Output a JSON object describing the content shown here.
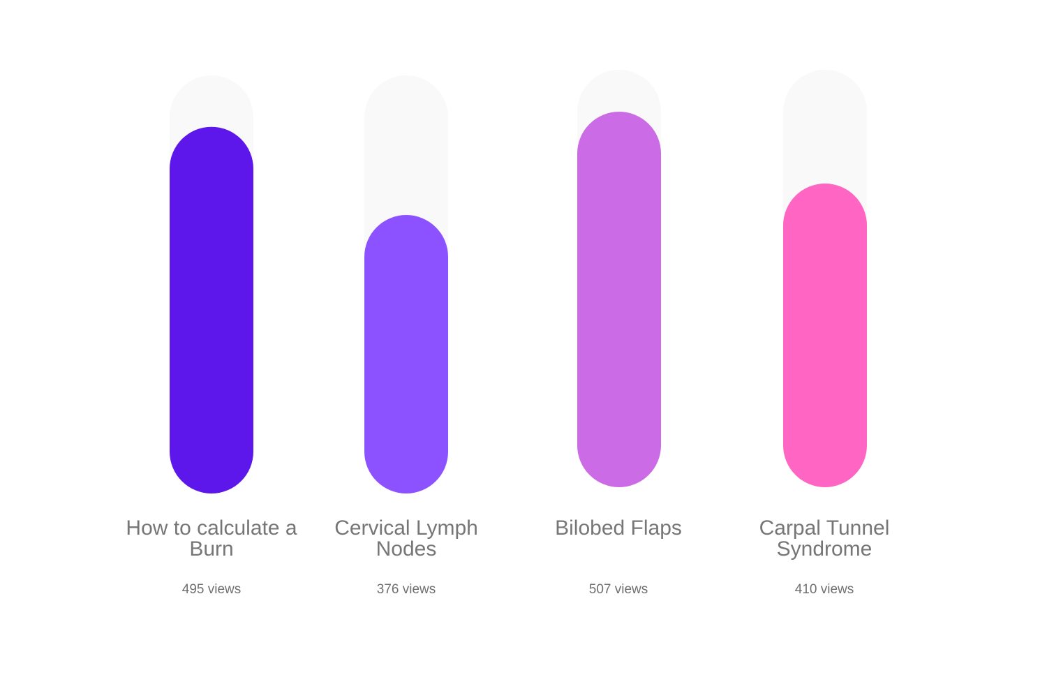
{
  "chart_data": {
    "type": "bar",
    "categories": [
      "How to calculate a Burn",
      "Cervical Lymph Nodes",
      "Bilobed Flaps",
      "Carpal Tunnel Syndrome"
    ],
    "values": [
      495,
      376,
      507,
      410
    ],
    "value_labels": [
      "495 views",
      "376 views",
      "507 views",
      "410 views"
    ],
    "value_unit": "views",
    "title": "",
    "xlabel": "",
    "ylabel": "",
    "colors": [
      "#5e17eb",
      "#8c52ff",
      "#cb6ce6",
      "#ff66c4"
    ],
    "track_color": "#f9f9f9",
    "grid": false,
    "legend": "none"
  }
}
